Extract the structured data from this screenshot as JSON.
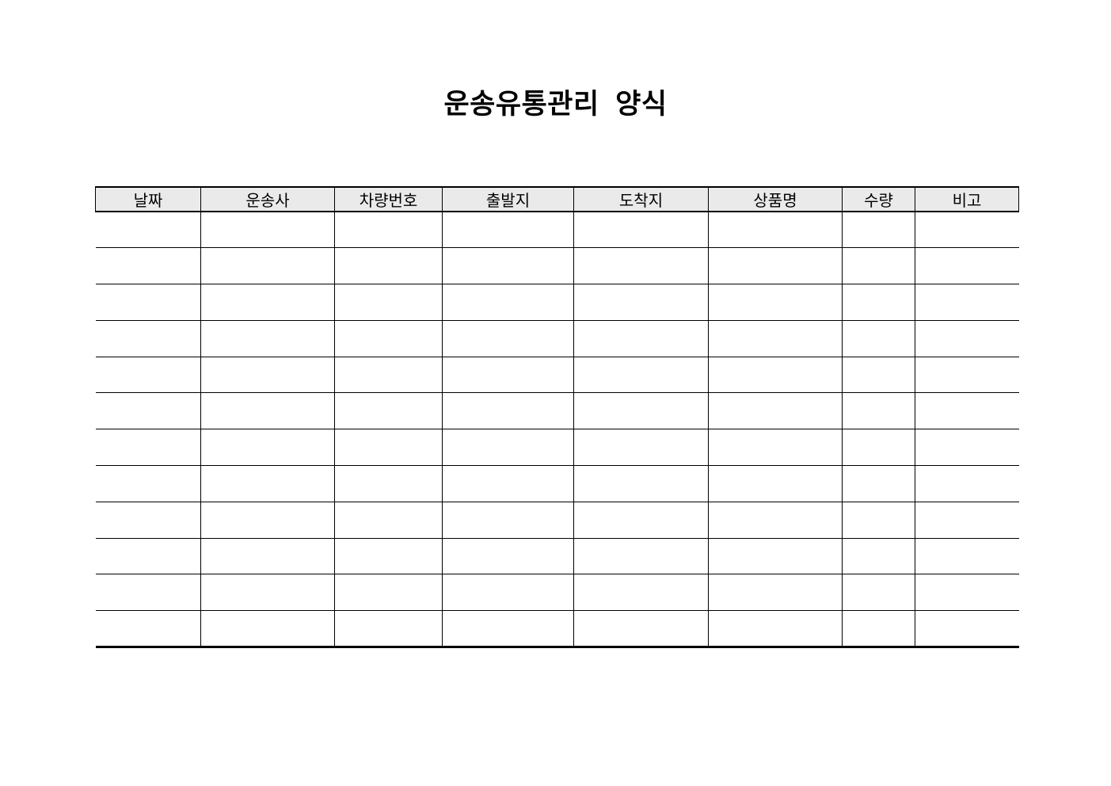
{
  "document": {
    "title": "운송유통관리  양식"
  },
  "table": {
    "headers": [
      "날짜",
      "운송사",
      "차량번호",
      "출발지",
      "도착지",
      "상품명",
      "수량",
      "비고"
    ],
    "row_count": 12,
    "rows": [
      [
        "",
        "",
        "",
        "",
        "",
        "",
        "",
        ""
      ],
      [
        "",
        "",
        "",
        "",
        "",
        "",
        "",
        ""
      ],
      [
        "",
        "",
        "",
        "",
        "",
        "",
        "",
        ""
      ],
      [
        "",
        "",
        "",
        "",
        "",
        "",
        "",
        ""
      ],
      [
        "",
        "",
        "",
        "",
        "",
        "",
        "",
        ""
      ],
      [
        "",
        "",
        "",
        "",
        "",
        "",
        "",
        ""
      ],
      [
        "",
        "",
        "",
        "",
        "",
        "",
        "",
        ""
      ],
      [
        "",
        "",
        "",
        "",
        "",
        "",
        "",
        ""
      ],
      [
        "",
        "",
        "",
        "",
        "",
        "",
        "",
        ""
      ],
      [
        "",
        "",
        "",
        "",
        "",
        "",
        "",
        ""
      ],
      [
        "",
        "",
        "",
        "",
        "",
        "",
        "",
        ""
      ],
      [
        "",
        "",
        "",
        "",
        "",
        "",
        "",
        ""
      ]
    ],
    "colors": {
      "page_bg": "#ffffff",
      "header_bg": "#eaeaea",
      "border": "#000000",
      "text": "#000000"
    }
  }
}
